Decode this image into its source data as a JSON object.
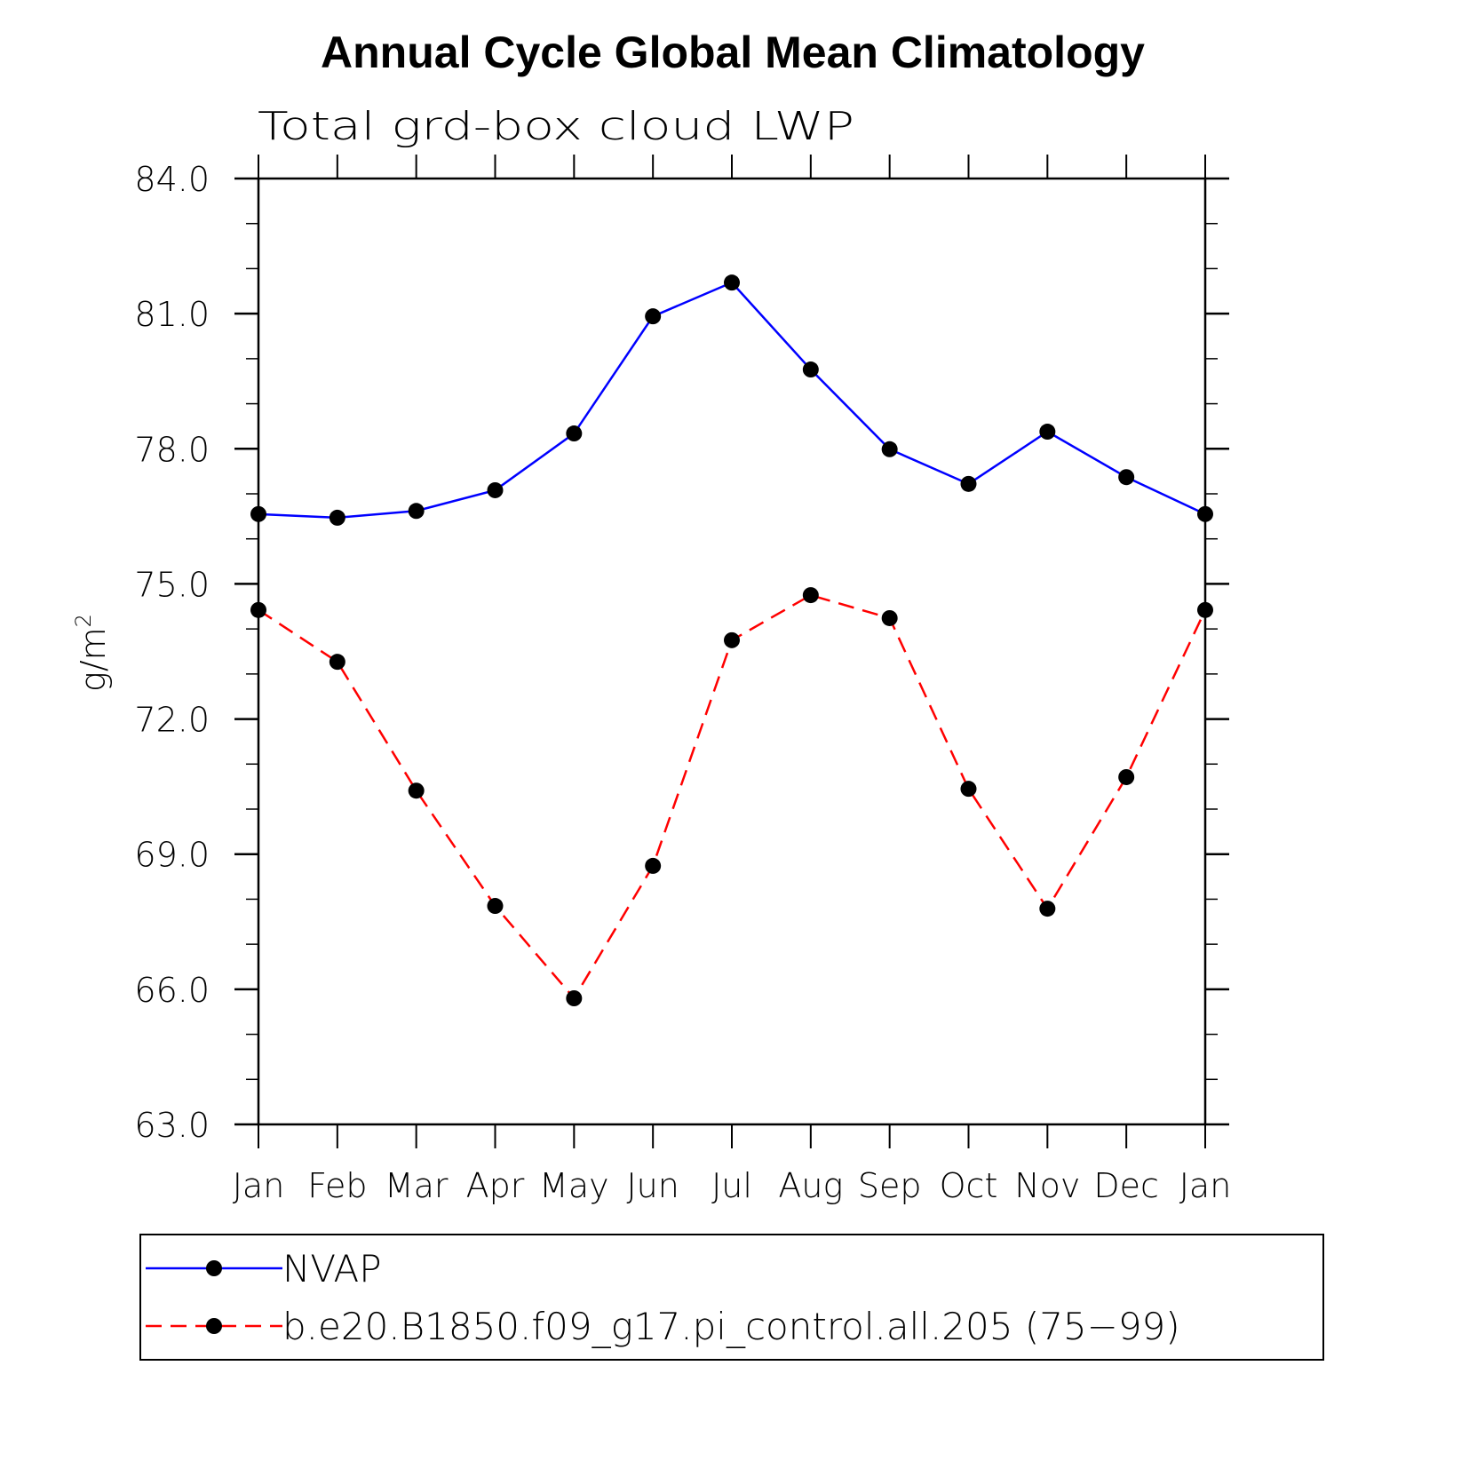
{
  "chart_data": {
    "type": "line",
    "title": "Annual Cycle Global Mean Climatology",
    "subtitle": "Total grd-box cloud LWP",
    "xlabel": "",
    "ylabel": "g/m",
    "ylabel_sup": "2",
    "categories": [
      "Jan",
      "Feb",
      "Mar",
      "Apr",
      "May",
      "Jun",
      "Jul",
      "Aug",
      "Sep",
      "Oct",
      "Nov",
      "Dec",
      "Jan"
    ],
    "ylim": [
      63.0,
      84.0
    ],
    "yticks": [
      "63.0",
      "66.0",
      "69.0",
      "72.0",
      "75.0",
      "78.0",
      "81.0",
      "84.0"
    ],
    "ytick_values": [
      63,
      66,
      69,
      72,
      75,
      78,
      81,
      84
    ],
    "grid": false,
    "legend_placement": "bottom",
    "series": [
      {
        "name": "NVAP",
        "color": "#0000ff",
        "dash": "solid",
        "values": [
          76.55,
          76.47,
          76.62,
          77.08,
          78.34,
          80.94,
          81.69,
          79.76,
          77.99,
          77.22,
          78.38,
          77.37,
          76.55
        ]
      },
      {
        "name": "b.e20.B1850.f09_g17.pi_control.all.205 (75−99)",
        "color": "#ff0000",
        "dash": "dashed",
        "values": [
          74.42,
          73.27,
          70.41,
          67.85,
          65.8,
          68.74,
          73.75,
          74.75,
          74.24,
          70.45,
          67.79,
          70.71,
          74.42
        ]
      }
    ]
  }
}
